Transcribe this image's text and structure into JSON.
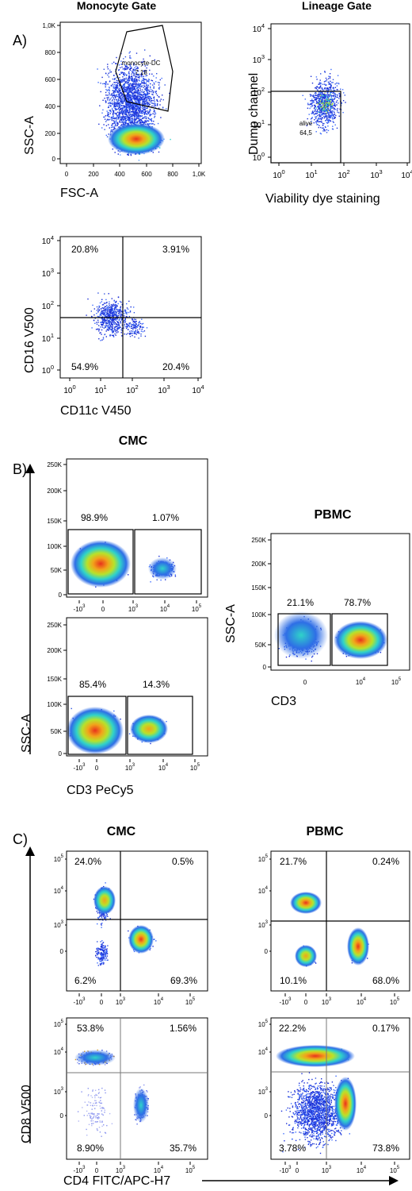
{
  "chart_data": [
    {
      "type": "scatter",
      "panel": "A",
      "title": "Monocyte Gate",
      "xlabel": "FSC-A",
      "ylabel": "SSC-A",
      "xticks": [
        "0",
        "200",
        "400",
        "600",
        "800",
        "1,0K"
      ],
      "yticks": [
        "0",
        "200",
        "400",
        "600",
        "800",
        "1,0K"
      ],
      "gates": [
        {
          "name": "monocyte-DC",
          "percent": "7,18"
        }
      ]
    },
    {
      "type": "scatter",
      "panel": "A",
      "title": "Lineage Gate",
      "xlabel": "Viability dye staining",
      "ylabel": "Dump channel",
      "xscale": "log",
      "yscale": "log",
      "gates": [
        {
          "name": "alive",
          "percent": "64,5"
        }
      ]
    },
    {
      "type": "scatter",
      "panel": "A",
      "xlabel": "CD11c V450",
      "ylabel": "CD16 V500",
      "xscale": "log",
      "yscale": "log",
      "quadrants": {
        "top_left": "20.8%",
        "top_right": "3.91%",
        "bottom_left": "54.9%",
        "bottom_right": "20.4%"
      }
    },
    {
      "type": "scatter",
      "panel": "B",
      "title": "CMC",
      "ylabel": "",
      "yticks": [
        "0",
        "50K",
        "100K",
        "150K",
        "200K",
        "250K"
      ],
      "gates": {
        "left": "98.9%",
        "right": "1.07%"
      }
    },
    {
      "type": "scatter",
      "panel": "B",
      "xlabel": "CD3 PeCy5",
      "ylabel": "SSC-A",
      "yticks": [
        "0",
        "50K",
        "100K",
        "150K",
        "200K",
        "250K"
      ],
      "gates": {
        "left": "85.4%",
        "right": "14.3%"
      }
    },
    {
      "type": "scatter",
      "panel": "B",
      "title": "PBMC",
      "xlabel": "CD3",
      "ylabel": "SSC-A",
      "yticks": [
        "0",
        "50K",
        "100K",
        "150K",
        "200K",
        "250K"
      ],
      "gates": {
        "left": "21.1%",
        "right": "78.7%"
      }
    },
    {
      "type": "scatter",
      "panel": "C",
      "title": "CMC",
      "quadrants": {
        "top_left": "24.0%",
        "top_right": "0.5%",
        "bottom_left": "6.2%",
        "bottom_right": "69.3%"
      }
    },
    {
      "type": "scatter",
      "panel": "C",
      "title": "PBMC",
      "quadrants": {
        "top_left": "21.7%",
        "top_right": "0.24%",
        "bottom_left": "10.1%",
        "bottom_right": "68.0%"
      }
    },
    {
      "type": "scatter",
      "panel": "C",
      "xlabel": "CD4 FITC/APC-H7",
      "ylabel": "CD8 V500",
      "quadrants": {
        "top_left": "53.8%",
        "top_right": "1.56%",
        "bottom_left": "8.90%",
        "bottom_right": "35.7%"
      }
    },
    {
      "type": "scatter",
      "panel": "C",
      "quadrants": {
        "top_left": "22.2%",
        "top_right": "0.17%",
        "bottom_left": "3.78%",
        "bottom_right": "73.8%"
      }
    }
  ],
  "labels": {
    "panel_a": "A)",
    "panel_b": "B)",
    "panel_c": "C)",
    "monocyte_gate": "Monocyte Gate",
    "lineage_gate": "Lineage Gate",
    "cmc_b": "CMC",
    "pbmc_b": "PBMC",
    "cmc_c": "CMC",
    "pbmc_c": "PBMC",
    "fsc_a": "FSC-A",
    "ssc_a": "SSC-A",
    "dump_channel": "Dump channel",
    "viability": "Viability dye staining",
    "cd16": "CD16 V500",
    "cd11c": "CD11c V450",
    "ssc_a_b": "SSC-A",
    "cd3_pecy5": "CD3 PeCy5",
    "ssc_a_pbmc": "SSC-A",
    "cd3": "CD3",
    "cd8": "CD8 V500",
    "cd4": "CD4 FITC/APC-H7",
    "monocyte_gate_name": "monocyte-DC",
    "monocyte_gate_pct": "7,18",
    "alive_name": "alive",
    "alive_pct": "64,5"
  },
  "ticks": {
    "lin_x": [
      "0",
      "200",
      "400",
      "600",
      "800",
      "1,0K"
    ],
    "lin_y": [
      "0",
      "200",
      "400",
      "600",
      "800",
      "1,0K"
    ],
    "k_y": [
      "0",
      "50K",
      "100K",
      "150K",
      "200K",
      "250K"
    ],
    "log_10": "10",
    "log_exps": [
      "0",
      "1",
      "2",
      "3",
      "4"
    ],
    "bx_m3": "-10",
    "bx_0": "0",
    "bx_3": "10",
    "bx_4": "10",
    "bx_5": "10",
    "exp_m3": "3",
    "exp_3": "3",
    "exp_4": "4",
    "exp_5": "5"
  },
  "quads": {
    "a3": [
      "20.8%",
      "3.91%",
      "54.9%",
      "20.4%"
    ],
    "b1": [
      "98.9%",
      "1.07%"
    ],
    "b2": [
      "85.4%",
      "14.3%"
    ],
    "b3": [
      "21.1%",
      "78.7%"
    ],
    "c1": [
      "24.0%",
      "0.5%",
      "6.2%",
      "69.3%"
    ],
    "c2": [
      "21.7%",
      "0.24%",
      "10.1%",
      "68.0%"
    ],
    "c3": [
      "53.8%",
      "1.56%",
      "8.90%",
      "35.7%"
    ],
    "c4": [
      "22.2%",
      "0.17%",
      "3.78%",
      "73.8%"
    ]
  },
  "colors": {
    "axis": "#000000",
    "scatter_low": "#1a2dd6",
    "scatter_high": "#e8321c"
  }
}
